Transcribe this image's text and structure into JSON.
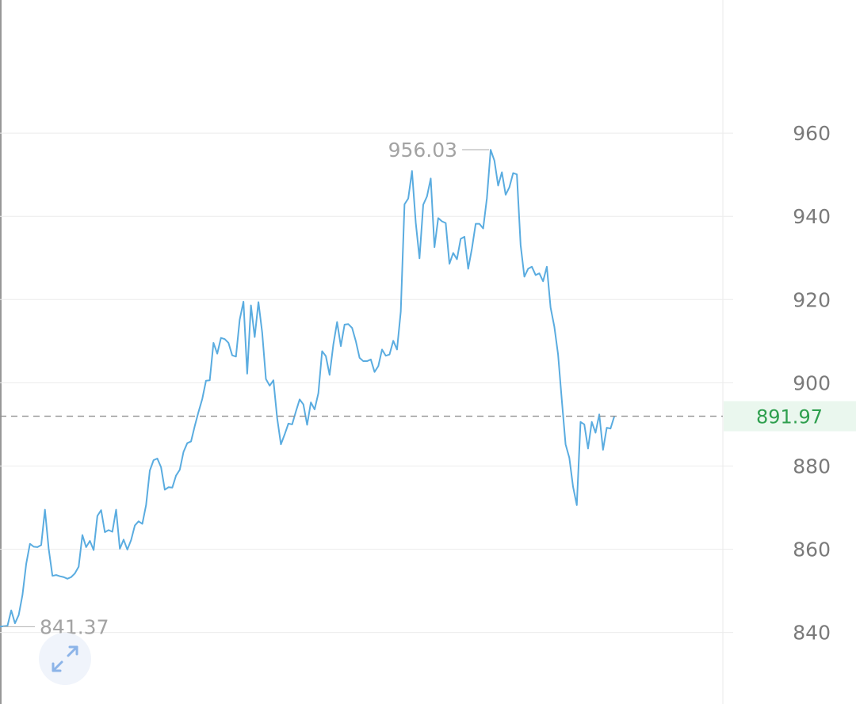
{
  "chart_data": {
    "type": "line",
    "title": "",
    "xlabel": "",
    "ylabel": "",
    "ylim": [
      822.8,
      992.0
    ],
    "y_ticks": [
      840,
      860,
      880,
      900,
      920,
      940,
      960
    ],
    "grid": true,
    "y_axis_position": "right",
    "current_value": 891.97,
    "current_label": "891.97",
    "max_value": 956.03,
    "max_label": "956.03",
    "min_value": 841.37,
    "min_label": "841.37",
    "series": [
      {
        "values": [
          841.4,
          841.5,
          841.6,
          845.3,
          842.2,
          844.2,
          849.0,
          856.5,
          861.3,
          860.6,
          860.5,
          861.0,
          869.5,
          860.1,
          853.6,
          853.8,
          853.5,
          853.3,
          852.9,
          853.3,
          854.2,
          855.8,
          863.4,
          860.5,
          862.0,
          859.8,
          868.0,
          869.4,
          864.1,
          864.6,
          864.2,
          869.5,
          860.1,
          862.3,
          859.9,
          862.2,
          865.7,
          866.7,
          866.1,
          870.6,
          878.9,
          881.4,
          881.8,
          879.7,
          874.3,
          874.9,
          874.8,
          877.7,
          879.1,
          883.4,
          885.5,
          885.9,
          889.6,
          893.0,
          896.1,
          900.5,
          900.6,
          909.6,
          907.0,
          910.8,
          910.5,
          909.6,
          906.6,
          906.3,
          915.2,
          919.5,
          902.2,
          918.6,
          911.0,
          919.4,
          912.1,
          900.9,
          899.3,
          900.6,
          891.5,
          885.2,
          887.6,
          890.2,
          890.0,
          893.1,
          896.0,
          894.8,
          889.9,
          895.3,
          893.6,
          897.5,
          907.6,
          906.4,
          901.9,
          909.2,
          914.6,
          908.8,
          914.0,
          914.1,
          913.2,
          910.0,
          906.0,
          905.2,
          905.2,
          905.6,
          902.6,
          904.0,
          908.0,
          906.5,
          906.8,
          910.1,
          908.0,
          917.1,
          942.9,
          944.3,
          950.9,
          938.5,
          929.9,
          942.8,
          944.8,
          949.1,
          932.6,
          939.6,
          938.8,
          938.4,
          928.6,
          931.2,
          929.7,
          934.6,
          935.1,
          927.4,
          932.3,
          938.2,
          938.2,
          937.1,
          944.4,
          956.0,
          953.4,
          947.4,
          950.6,
          945.2,
          947.0,
          950.4,
          950.1,
          933.1,
          925.5,
          927.4,
          927.9,
          925.9,
          926.3,
          924.4,
          927.9,
          918.1,
          913.5,
          906.8,
          895.8,
          885.2,
          882.0,
          875.0,
          870.6,
          890.6,
          890.0,
          884.2,
          890.6,
          888.0,
          892.4,
          883.9,
          889.2,
          889.0,
          891.9
        ]
      }
    ]
  },
  "colors": {
    "line": "#5aace0",
    "current_line": "#909090",
    "current_label_text": "#2e9f4e",
    "current_label_bg": "#eaf7ee",
    "expand_icon": "#8cb4e8"
  },
  "icons": {
    "expand": "expand-arrows-icon"
  }
}
